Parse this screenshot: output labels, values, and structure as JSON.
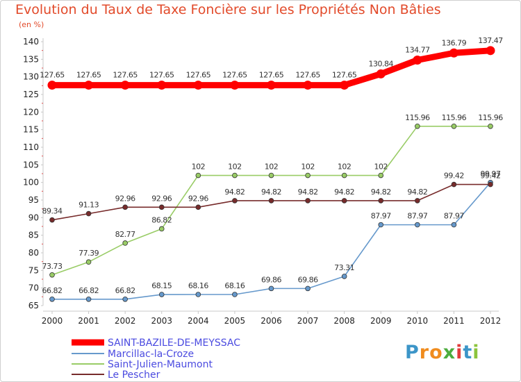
{
  "title": "Evolution du Taux de Taxe Foncière sur les Propriétés Non Bâties",
  "unit_label": "(en %)",
  "logo": {
    "letters": [
      "P",
      "r",
      "o",
      "x",
      "i",
      "t",
      "i"
    ],
    "colors": [
      "#3c95c8",
      "#f08c1e",
      "#f08c1e",
      "#4cad3f",
      "#e23c3c",
      "#3c95c8",
      "#8cc43c"
    ]
  },
  "chart_data": {
    "type": "line",
    "title": "Evolution du Taux de Taxe Foncière sur les Propriétés Non Bâties",
    "ylabel": "(en %)",
    "xlabel": "",
    "x": [
      "2000",
      "2001",
      "2002",
      "2003",
      "2004",
      "2005",
      "2006",
      "2007",
      "2008",
      "2009",
      "2010",
      "2011",
      "2012"
    ],
    "ylim": [
      65,
      140
    ],
    "yticks": [
      65,
      70,
      75,
      80,
      85,
      90,
      95,
      100,
      105,
      110,
      115,
      120,
      125,
      130,
      135,
      140
    ],
    "grid": false,
    "legend_position": "bottom-left",
    "series": [
      {
        "name": "SAINT-BAZILE-DE-MEYSSAC",
        "color": "#ff0000",
        "values": [
          127.65,
          127.65,
          127.65,
          127.65,
          127.65,
          127.65,
          127.65,
          127.65,
          127.65,
          130.84,
          134.77,
          136.79,
          137.47
        ],
        "labels": [
          "127.65",
          "127.65",
          "127.65",
          "127.65",
          "127.65",
          "127.65",
          "127.65",
          "127.65",
          "127.65",
          "130.84",
          "134.77",
          "136.79",
          "137.47"
        ]
      },
      {
        "name": "Marcillac-la-Croze",
        "color": "#6699cc",
        "values": [
          66.82,
          66.82,
          66.82,
          68.15,
          68.16,
          68.16,
          69.86,
          69.86,
          73.31,
          87.97,
          87.97,
          87.97,
          99.97
        ],
        "labels": [
          "66.82",
          "66.82",
          "66.82",
          "68.15",
          "68.16",
          "68.16",
          "69.86",
          "69.86",
          "73.31",
          "87.97",
          "87.97",
          "87.97",
          "99.97"
        ]
      },
      {
        "name": "Saint-Julien-Maumont",
        "color": "#99cc66",
        "values": [
          73.73,
          77.39,
          82.77,
          86.82,
          102,
          102,
          102,
          102,
          102,
          102,
          115.96,
          115.96,
          115.96
        ],
        "labels": [
          "73.73",
          "77.39",
          "82.77",
          "86.82",
          "102",
          "102",
          "102",
          "102",
          "102",
          "102",
          "115.96",
          "115.96",
          "115.96"
        ]
      },
      {
        "name": "Le Pescher",
        "color": "#772b2b",
        "values": [
          89.34,
          91.13,
          92.96,
          92.96,
          92.96,
          94.82,
          94.82,
          94.82,
          94.82,
          94.82,
          94.82,
          99.42,
          99.42
        ],
        "labels": [
          "89.34",
          "91.13",
          "92.96",
          "92.96",
          "92.96",
          "94.82",
          "94.82",
          "94.82",
          "94.82",
          "94.82",
          "94.82",
          "99.42",
          "99.42"
        ]
      }
    ]
  }
}
